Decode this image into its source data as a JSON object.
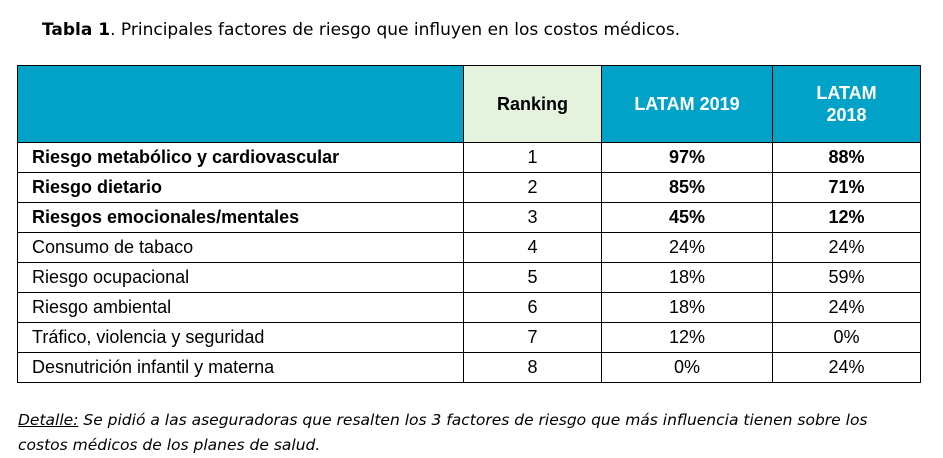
{
  "caption": {
    "label": "Tabla 1",
    "text": ". Principales factores de riesgo que influyen en los costos médicos."
  },
  "table": {
    "headers": {
      "factor": "",
      "ranking": "Ranking",
      "latam2019": "LATAM 2019",
      "latam2018": "LATAM 2018"
    },
    "rows": [
      {
        "factor": "Riesgo metabólico y cardiovascular",
        "ranking": "1",
        "latam2019": "97%",
        "latam2018": "88%"
      },
      {
        "factor": "Riesgo dietario",
        "ranking": "2",
        "latam2019": "85%",
        "latam2018": "71%"
      },
      {
        "factor": "Riesgos emocionales/mentales",
        "ranking": "3",
        "latam2019": "45%",
        "latam2018": "12%"
      },
      {
        "factor": "Consumo de tabaco",
        "ranking": "4",
        "latam2019": "24%",
        "latam2018": "24%"
      },
      {
        "factor": "Riesgo ocupacional",
        "ranking": "5",
        "latam2019": "18%",
        "latam2018": "59%"
      },
      {
        "factor": "Riesgo ambiental",
        "ranking": "6",
        "latam2019": "18%",
        "latam2018": "24%"
      },
      {
        "factor": "Tráfico, violencia y seguridad",
        "ranking": "7",
        "latam2019": "12%",
        "latam2018": "0%"
      },
      {
        "factor": "Desnutrición infantil y materna",
        "ranking": "8",
        "latam2019": "0%",
        "latam2018": "24%"
      }
    ]
  },
  "colors": {
    "header_bg": "#00a3c7",
    "ranking_header_bg": "#e4f2de"
  },
  "footnote": {
    "label": "Detalle:",
    "text": " Se pidió a las aseguradoras que resalten los 3 factores de riesgo que más influencia tienen sobre los costos médicos de los planes de salud."
  }
}
